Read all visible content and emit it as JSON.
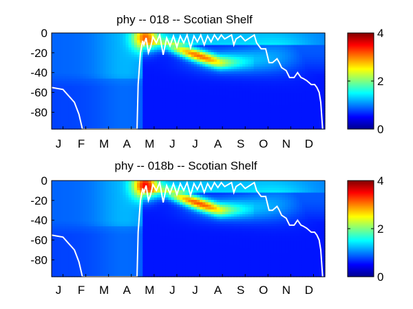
{
  "chart_data": [
    {
      "type": "heatmap",
      "title": "phy -- 018 -- Scotian Shelf",
      "x_ticks": [
        "J",
        "F",
        "M",
        "A",
        "M",
        "J",
        "J",
        "A",
        "S",
        "O",
        "N",
        "D"
      ],
      "y_ticks": [
        0,
        -20,
        -40,
        -60,
        -80
      ],
      "ylim": [
        -97,
        0
      ],
      "colorbar": {
        "ticks": [
          0,
          2,
          4
        ],
        "range": [
          0,
          4
        ],
        "colormap": "jet"
      },
      "mld_line": {
        "color": "#ffffff",
        "x": [
          0.0,
          0.5,
          1.0,
          1.2,
          1.35,
          3.75,
          3.8,
          3.9,
          4.0,
          4.05,
          4.15,
          4.25,
          4.35,
          4.45,
          4.6,
          4.75,
          4.9,
          5.05,
          5.2,
          5.35,
          5.5,
          5.65,
          5.8,
          5.95,
          6.1,
          6.25,
          6.4,
          6.55,
          6.7,
          6.85,
          7.0,
          7.15,
          7.3,
          7.45,
          7.6,
          7.75,
          7.9,
          8.0,
          8.1,
          8.3,
          8.5,
          8.7,
          8.9,
          9.0,
          9.2,
          9.4,
          9.55,
          9.7,
          9.8,
          9.9,
          10.0,
          10.1,
          10.3,
          10.45,
          10.55,
          10.65,
          10.8,
          10.95,
          11.05,
          11.2,
          11.4,
          11.55,
          11.65,
          11.75,
          11.82,
          11.9
        ],
        "y": [
          -55,
          -57,
          -70,
          -82,
          -97,
          -97,
          -52,
          -20,
          -8,
          -12,
          -5,
          -20,
          -14,
          -4,
          -10,
          -2,
          -22,
          -5,
          -13,
          -3,
          -14,
          -3,
          -10,
          -2,
          -15,
          -3,
          -9,
          -2,
          -12,
          -3,
          -9,
          -2,
          -7,
          -2,
          -6,
          -4,
          -2,
          -12,
          -6,
          -3,
          -8,
          -5,
          -2,
          -10,
          -16,
          -16,
          -30,
          -30,
          -28,
          -26,
          -30,
          -35,
          -38,
          -45,
          -45,
          -45,
          -40,
          -45,
          -46,
          -48,
          -52,
          -52,
          -55,
          -60,
          -70,
          -97
        ]
      },
      "features": [
        {
          "kind": "bloom",
          "month": 4.1,
          "depth": -5,
          "value": 2.6
        },
        {
          "kind": "subsurface-max",
          "start_month": 5.0,
          "end_month": 7.4,
          "start_depth": -12,
          "end_depth": -30,
          "value": 2.8
        }
      ]
    },
    {
      "type": "heatmap",
      "title": "phy -- 018b -- Scotian Shelf",
      "x_ticks": [
        "J",
        "F",
        "M",
        "A",
        "M",
        "J",
        "J",
        "A",
        "S",
        "O",
        "N",
        "D"
      ],
      "y_ticks": [
        0,
        -20,
        -40,
        -60,
        -80
      ],
      "ylim": [
        -97,
        0
      ],
      "colorbar": {
        "ticks": [
          0,
          2,
          4
        ],
        "range": [
          0,
          4
        ],
        "colormap": "jet"
      },
      "mld_line": {
        "color": "#ffffff",
        "x": [
          0.0,
          0.5,
          1.0,
          1.2,
          1.35,
          3.75,
          3.8,
          3.9,
          4.0,
          4.05,
          4.15,
          4.25,
          4.35,
          4.45,
          4.6,
          4.75,
          4.9,
          5.05,
          5.2,
          5.35,
          5.5,
          5.65,
          5.8,
          5.95,
          6.1,
          6.25,
          6.4,
          6.55,
          6.7,
          6.85,
          7.0,
          7.15,
          7.3,
          7.45,
          7.6,
          7.75,
          7.9,
          8.0,
          8.1,
          8.3,
          8.5,
          8.7,
          8.9,
          9.0,
          9.2,
          9.4,
          9.55,
          9.7,
          9.8,
          9.9,
          10.0,
          10.1,
          10.3,
          10.45,
          10.55,
          10.65,
          10.8,
          10.95,
          11.05,
          11.2,
          11.4,
          11.55,
          11.65,
          11.75,
          11.82,
          11.9
        ],
        "y": [
          -55,
          -57,
          -70,
          -82,
          -97,
          -97,
          -52,
          -20,
          -8,
          -12,
          -5,
          -20,
          -14,
          -4,
          -10,
          -2,
          -22,
          -5,
          -13,
          -3,
          -14,
          -3,
          -10,
          -2,
          -15,
          -3,
          -9,
          -2,
          -12,
          -3,
          -9,
          -2,
          -7,
          -2,
          -6,
          -4,
          -2,
          -12,
          -6,
          -3,
          -8,
          -5,
          -2,
          -10,
          -16,
          -16,
          -30,
          -30,
          -28,
          -26,
          -30,
          -35,
          -38,
          -45,
          -45,
          -45,
          -40,
          -45,
          -46,
          -48,
          -52,
          -52,
          -55,
          -60,
          -70,
          -97
        ]
      },
      "features": [
        {
          "kind": "bloom",
          "month": 4.1,
          "depth": -5,
          "value": 3.0
        },
        {
          "kind": "subsurface-max",
          "start_month": 5.0,
          "end_month": 7.4,
          "start_depth": -12,
          "end_depth": -30,
          "value": 2.9
        }
      ]
    }
  ]
}
